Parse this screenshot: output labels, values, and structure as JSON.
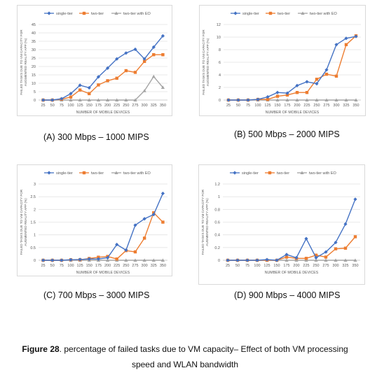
{
  "colors": {
    "single_tier": "#4472C4",
    "two_tier": "#ED7D31",
    "two_tier_eo": "#A5A5A5",
    "grid": "#e3e3e3",
    "axis_text": "#595959"
  },
  "figure_caption": {
    "label": "Figure 28",
    "text": ". percentage of failed tasks due to VM capacity– Effect of both VM processing",
    "line2": "speed and WLAN bandwidth"
  },
  "chart_data": [
    {
      "id": "A",
      "type": "line",
      "caption": "(A) 300 Mbps – 1000 MIPS",
      "xlabel": "NUMBER OF MOBILE DEVICES",
      "ylabel": "FAILED TASKS DUE TO VM CAPACITY FOR AUGMENTED REALITY APP (%)",
      "categories": [
        "25",
        "50",
        "75",
        "100",
        "125",
        "150",
        "175",
        "200",
        "225",
        "250",
        "275",
        "300",
        "325",
        "350"
      ],
      "ylim": [
        0,
        45
      ],
      "yticks": [
        "0",
        "5",
        "10",
        "15",
        "20",
        "25",
        "30",
        "35",
        "40",
        "45"
      ],
      "legend_position": "top",
      "grid": true,
      "series": [
        {
          "name": "single-tier",
          "values": [
            0,
            0,
            0.8,
            3.8,
            8.8,
            7.3,
            13.8,
            19,
            24.5,
            28,
            30.2,
            24.5,
            31.5,
            38.2
          ]
        },
        {
          "name": "two-tier",
          "values": [
            0,
            0,
            0.5,
            1.8,
            6,
            3.8,
            9,
            11.5,
            13,
            17.5,
            16.5,
            23,
            27,
            27
          ]
        },
        {
          "name": "two-tier with EO",
          "values": [
            0,
            0,
            0,
            0,
            0,
            0,
            0,
            0,
            0,
            0,
            0,
            5.5,
            14,
            7.5
          ]
        }
      ]
    },
    {
      "id": "B",
      "type": "line",
      "caption": "(B) 500 Mbps – 2000 MIPS",
      "xlabel": "NUMBER OF MOBILE DEVICES",
      "ylabel": "FAILED TASKS DUE TO VM CAPACITY FOR AUGMENTED REALITY APP (%)",
      "categories": [
        "25",
        "50",
        "75",
        "100",
        "125",
        "150",
        "175",
        "200",
        "225",
        "250",
        "275",
        "300",
        "325",
        "350"
      ],
      "ylim": [
        0,
        12
      ],
      "yticks": [
        "0",
        "2",
        "4",
        "6",
        "8",
        "10",
        "12"
      ],
      "legend_position": "top",
      "grid": true,
      "series": [
        {
          "name": "single-tier",
          "values": [
            0,
            0,
            0,
            0.1,
            0.5,
            1.2,
            1.1,
            2.3,
            2.9,
            2.6,
            4.8,
            8.8,
            9.8,
            10.1
          ]
        },
        {
          "name": "two-tier",
          "values": [
            0,
            0,
            0,
            0.1,
            0.1,
            0.6,
            0.8,
            1.2,
            1.2,
            3.3,
            4.1,
            3.8,
            8.8,
            10.2
          ]
        },
        {
          "name": "two-tier with EO",
          "values": [
            0,
            0,
            0,
            0,
            0,
            0,
            0,
            0,
            0,
            0,
            0,
            0,
            0,
            0
          ]
        }
      ]
    },
    {
      "id": "C",
      "type": "line",
      "caption": "(C) 700 Mbps – 3000 MIPS",
      "xlabel": "NUMBER OF MOBILE DEVICES",
      "ylabel": "FAILED TASKS DUE TO VM CAPACITY FOR AUGMENTED REALITY APP (%)",
      "categories": [
        "25",
        "50",
        "75",
        "100",
        "125",
        "150",
        "175",
        "200",
        "225",
        "250",
        "275",
        "300",
        "325",
        "350"
      ],
      "ylim": [
        0,
        3
      ],
      "yticks": [
        "0",
        "0.5",
        "1",
        "1.5",
        "2",
        "2.5",
        "3"
      ],
      "legend_position": "top",
      "grid": true,
      "series": [
        {
          "name": "single-tier",
          "values": [
            0,
            0,
            0,
            0.02,
            0.03,
            0.05,
            0.05,
            0.1,
            0.62,
            0.4,
            1.38,
            1.63,
            1.8,
            2.63
          ]
        },
        {
          "name": "two-tier",
          "values": [
            0,
            0,
            0,
            0.02,
            0.02,
            0.07,
            0.12,
            0.15,
            0.05,
            0.38,
            0.33,
            0.87,
            1.87,
            1.5
          ]
        },
        {
          "name": "two-tier with EO",
          "values": [
            0,
            0,
            0,
            0,
            0,
            0,
            0,
            0,
            0,
            0,
            0,
            0,
            0,
            0
          ]
        }
      ]
    },
    {
      "id": "D",
      "type": "line",
      "caption": "(D) 900 Mbps – 4000 MIPS",
      "xlabel": "NUMBER OF MOBILE DEVICES",
      "ylabel": "FAILED TASKS DUE TO VM CAPACITY FOR AUGMENTED REALITY APP (%)",
      "categories": [
        "25",
        "50",
        "75",
        "100",
        "125",
        "150",
        "175",
        "200",
        "225",
        "250",
        "275",
        "300",
        "325",
        "350"
      ],
      "ylim": [
        0,
        1.2
      ],
      "yticks": [
        "0",
        "0.2",
        "0.4",
        "0.6",
        "0.8",
        "1",
        "1.2"
      ],
      "legend_position": "top",
      "grid": true,
      "series": [
        {
          "name": "single-tier",
          "values": [
            0,
            0,
            0,
            0,
            0.01,
            0,
            0.09,
            0.04,
            0.34,
            0.04,
            0.13,
            0.28,
            0.57,
            0.96
          ]
        },
        {
          "name": "two-tier",
          "values": [
            0,
            0,
            0,
            0,
            0,
            0,
            0.05,
            0.03,
            0.03,
            0.08,
            0.05,
            0.18,
            0.19,
            0.37
          ]
        },
        {
          "name": "two-tier with EO",
          "values": [
            0,
            0,
            0,
            0,
            0,
            0,
            0,
            0,
            0,
            0,
            0,
            0,
            0,
            0
          ]
        }
      ]
    }
  ]
}
